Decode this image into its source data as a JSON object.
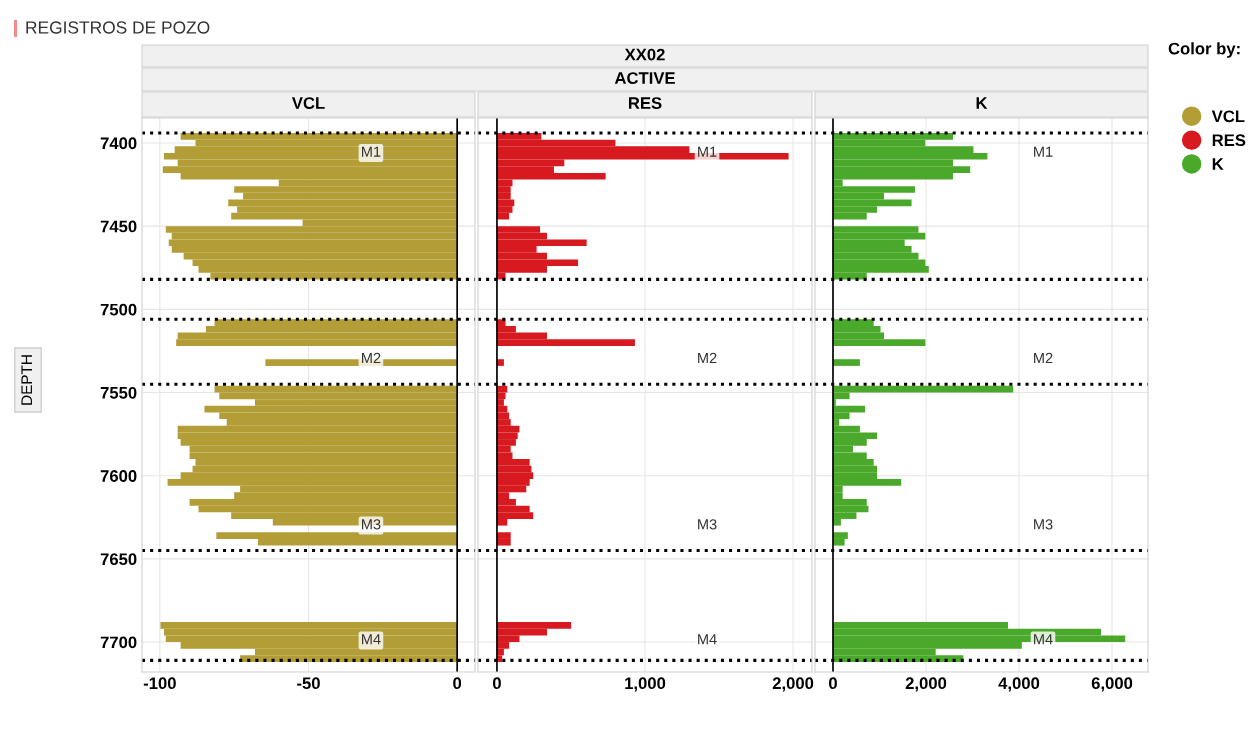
{
  "chart_data": [
    {
      "type": "other",
      "title": "REGISTROS DE POZO",
      "annotations": [
        "XX02",
        "ACTIVE"
      ]
    },
    {
      "type": "bar",
      "orientation": "horizontal",
      "title": "VCL",
      "ylabel": "DEPTH",
      "grid": true,
      "legend": "right",
      "legend_title": "Color by:",
      "x": [
        7396,
        7400,
        7404,
        7408,
        7412,
        7416,
        7420,
        7424,
        7428,
        7432,
        7436,
        7440,
        7444,
        7448,
        7452,
        7456,
        7460,
        7464,
        7468,
        7472,
        7476,
        7480,
        7508,
        7512,
        7516,
        7520,
        7524,
        7528,
        7532,
        7548,
        7552,
        7556,
        7560,
        7564,
        7568,
        7572,
        7576,
        7580,
        7584,
        7588,
        7592,
        7596,
        7600,
        7604,
        7608,
        7612,
        7616,
        7620,
        7624,
        7628,
        7632,
        7636,
        7640,
        7690,
        7694,
        7698,
        7702,
        7706,
        7710
      ],
      "series": [
        {
          "name": "VCL",
          "color": "#b39d36",
          "values": [
            -93,
            -88,
            -95,
            -98.6,
            -94,
            -99,
            -93,
            -60,
            -75,
            -72,
            -77,
            -74,
            -76,
            -52,
            -98,
            -96,
            -97,
            -96,
            -92,
            -89,
            -87,
            -83,
            -81.6,
            -84.5,
            -94,
            -94.5,
            null,
            null,
            -64.5,
            -81.6,
            -80,
            -68,
            -85,
            -80,
            -77.5,
            -94,
            -94,
            -93,
            -90,
            -90,
            -88,
            -89,
            -93,
            -97.4,
            -73,
            -75,
            -90,
            -87,
            -76,
            -62,
            null,
            -81,
            -67,
            -99.8,
            -98.6,
            -98,
            -93,
            -68,
            -73
          ]
        }
      ],
      "xlim": [
        -106,
        6
      ],
      "xticks": [
        -100,
        -50,
        0
      ],
      "ylim": [
        7718,
        7385
      ],
      "yticks": [
        7400,
        7450,
        7500,
        7550,
        7600,
        7650,
        7700
      ],
      "ref_lines": [
        {
          "axis": "y",
          "value": 7394,
          "color": "#000000",
          "line_style": "dotted"
        },
        {
          "axis": "y",
          "value": 7482,
          "color": "#000000",
          "line_style": "dotted"
        },
        {
          "axis": "y",
          "value": 7506,
          "color": "#000000",
          "line_style": "dotted"
        },
        {
          "axis": "y",
          "value": 7545,
          "color": "#000000",
          "line_style": "dotted"
        },
        {
          "axis": "y",
          "value": 7645,
          "color": "#000000",
          "line_style": "dotted"
        },
        {
          "axis": "y",
          "value": 7711,
          "color": "#000000",
          "line_style": "dotted"
        }
      ],
      "annotations": [
        {
          "text": "M1",
          "x": -29,
          "y": 7406
        },
        {
          "text": "M2",
          "x": -29,
          "y": 7530
        },
        {
          "text": "M3",
          "x": -29,
          "y": 7630
        },
        {
          "text": "M4",
          "x": -29,
          "y": 7699
        }
      ]
    },
    {
      "type": "bar",
      "orientation": "horizontal",
      "title": "RES",
      "grid": true,
      "legend": "right",
      "tick_labels": "x",
      "x": [
        7396,
        7400,
        7404,
        7408,
        7412,
        7416,
        7420,
        7424,
        7428,
        7432,
        7436,
        7440,
        7444,
        7448,
        7452,
        7456,
        7460,
        7464,
        7468,
        7472,
        7476,
        7480,
        7508,
        7512,
        7516,
        7520,
        7524,
        7528,
        7532,
        7548,
        7552,
        7556,
        7560,
        7564,
        7568,
        7572,
        7576,
        7580,
        7584,
        7588,
        7592,
        7596,
        7600,
        7604,
        7608,
        7612,
        7616,
        7620,
        7624,
        7628,
        7632,
        7636,
        7640,
        7690,
        7694,
        7698,
        7702,
        7706,
        7710
      ],
      "series": [
        {
          "name": "RES",
          "color": "#d71920",
          "values": [
            300,
            800,
            1300,
            1970,
            455,
            385,
            734,
            105,
            93,
            93,
            117,
            105,
            82,
            null,
            291,
            338,
            606,
            268,
            338,
            548,
            338,
            58,
            58,
            128,
            338,
            932,
            null,
            null,
            47,
            70,
            58,
            47,
            70,
            82,
            93,
            152,
            140,
            128,
            93,
            105,
            221,
            233,
            245,
            221,
            198,
            82,
            128,
            221,
            245,
            70,
            null,
            93,
            93,
            501,
            338,
            152,
            82,
            47,
            35
          ]
        }
      ],
      "xlim": [
        -128,
        2128
      ],
      "xticks": [
        0,
        {
          "value": 1000,
          "label": "1,000"
        },
        {
          "value": 2000,
          "label": "2,000"
        }
      ],
      "ylim": [
        7718,
        7385
      ],
      "yticks": [
        7400,
        7450,
        7500,
        7550,
        7600,
        7650,
        7700
      ],
      "ref_lines": [
        {
          "axis": "y",
          "value": 7394,
          "color": "#000000",
          "line_style": "dotted"
        },
        {
          "axis": "y",
          "value": 7482,
          "color": "#000000",
          "line_style": "dotted"
        },
        {
          "axis": "y",
          "value": 7506,
          "color": "#000000",
          "line_style": "dotted"
        },
        {
          "axis": "y",
          "value": 7545,
          "color": "#000000",
          "line_style": "dotted"
        },
        {
          "axis": "y",
          "value": 7645,
          "color": "#000000",
          "line_style": "dotted"
        },
        {
          "axis": "y",
          "value": 7711,
          "color": "#000000",
          "line_style": "dotted"
        }
      ],
      "annotations": [
        {
          "text": "M1",
          "x": 1419,
          "y": 7406
        },
        {
          "text": "M2",
          "x": 1419,
          "y": 7530
        },
        {
          "text": "M3",
          "x": 1419,
          "y": 7630
        },
        {
          "text": "M4",
          "x": 1419,
          "y": 7699
        }
      ]
    },
    {
      "type": "bar",
      "orientation": "horizontal",
      "title": "K",
      "grid": true,
      "legend": "right",
      "tick_labels": "x",
      "x": [
        7396,
        7400,
        7404,
        7408,
        7412,
        7416,
        7420,
        7424,
        7428,
        7432,
        7436,
        7440,
        7444,
        7448,
        7452,
        7456,
        7460,
        7464,
        7468,
        7472,
        7476,
        7480,
        7508,
        7512,
        7516,
        7520,
        7524,
        7528,
        7532,
        7548,
        7552,
        7556,
        7560,
        7564,
        7568,
        7572,
        7576,
        7580,
        7584,
        7588,
        7592,
        7596,
        7600,
        7604,
        7608,
        7612,
        7616,
        7620,
        7624,
        7628,
        7632,
        7636,
        7640,
        7690,
        7694,
        7698,
        7702,
        7706,
        7710
      ],
      "series": [
        {
          "name": "K",
          "color": "#4aa82a",
          "values": [
            2580,
            1985,
            3020,
            3320,
            2580,
            2950,
            2580,
            207,
            1764,
            1097,
            1690,
            948,
            726,
            null,
            1838,
            1986,
            1541,
            1690,
            1838,
            1986,
            2060,
            726,
            874,
            1022,
            1097,
            1986,
            null,
            null,
            578,
            3875,
            356,
            59,
            689,
            356,
            133,
            578,
            948,
            726,
            430,
            726,
            874,
            948,
            948,
            1467,
            207,
            207,
            726,
            763,
            504,
            170,
            null,
            319,
            250,
            3764,
            5765,
            6284,
            4061,
            2208,
            2801
          ]
        }
      ],
      "xlim": [
        -387,
        6774
      ],
      "xticks": [
        0,
        {
          "value": 2000,
          "label": "2,000"
        },
        {
          "value": 4000,
          "label": "4,000"
        },
        {
          "value": 6000,
          "label": "6,000"
        }
      ],
      "ylim": [
        7718,
        7385
      ],
      "yticks": [
        7400,
        7450,
        7500,
        7550,
        7600,
        7650,
        7700
      ],
      "ref_lines": [
        {
          "axis": "y",
          "value": 7394,
          "color": "#000000",
          "line_style": "dotted"
        },
        {
          "axis": "y",
          "value": 7482,
          "color": "#000000",
          "line_style": "dotted"
        },
        {
          "axis": "y",
          "value": 7506,
          "color": "#000000",
          "line_style": "dotted"
        },
        {
          "axis": "y",
          "value": 7545,
          "color": "#000000",
          "line_style": "dotted"
        },
        {
          "axis": "y",
          "value": 7645,
          "color": "#000000",
          "line_style": "dotted"
        },
        {
          "axis": "y",
          "value": 7711,
          "color": "#000000",
          "line_style": "dotted"
        }
      ],
      "annotations": [
        {
          "text": "M1",
          "x": 4516,
          "y": 7406
        },
        {
          "text": "M2",
          "x": 4516,
          "y": 7530
        },
        {
          "text": "M3",
          "x": 4516,
          "y": 7630
        },
        {
          "text": "M4",
          "x": 4516,
          "y": 7699
        }
      ]
    }
  ]
}
